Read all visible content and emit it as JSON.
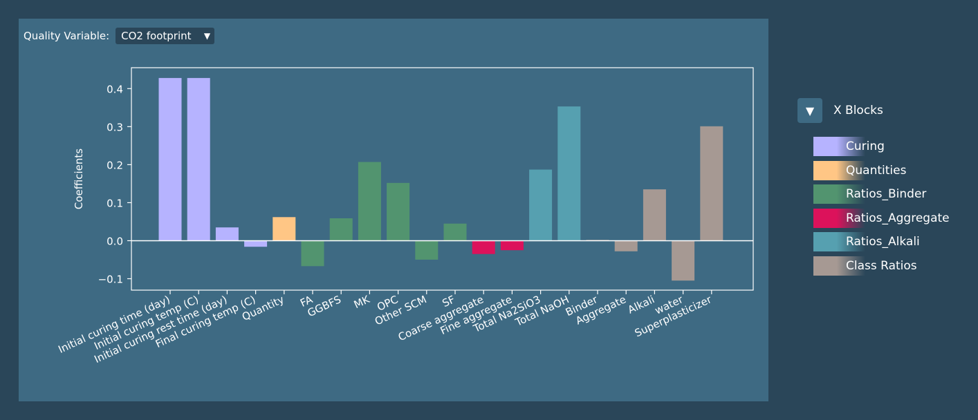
{
  "quality_variable": {
    "label": "Quality Variable:",
    "value": "CO2 footprint",
    "dropdown_icon": "triangle-down-icon"
  },
  "legend": {
    "title": "X Blocks",
    "toggle_icon": "triangle-down-icon",
    "items": [
      {
        "label": "Curing",
        "color": "#b6b3ff"
      },
      {
        "label": "Quantities",
        "color": "#ffc685"
      },
      {
        "label": "Ratios_Binder",
        "color": "#52946f"
      },
      {
        "label": "Ratios_Aggregate",
        "color": "#dc125b"
      },
      {
        "label": "Ratios_Alkali",
        "color": "#56a0b0"
      },
      {
        "label": "Class Ratios",
        "color": "#a69993"
      }
    ]
  },
  "chart_data": {
    "type": "bar",
    "title": "",
    "xlabel": "",
    "ylabel": "Coefficients",
    "ylim": [
      -0.13,
      0.455
    ],
    "yticks": [
      -0.1,
      0.0,
      0.1,
      0.2,
      0.3,
      0.4
    ],
    "ytick_labels": [
      "−0.1",
      "0.0",
      "0.1",
      "0.2",
      "0.3",
      "0.4"
    ],
    "grid": false,
    "legend_position": "right",
    "categories": [
      "Initial curing time (day)",
      "Initial curing temp (C)",
      "Initial curing rest time (day)",
      "Final curing temp (C)",
      "Quantity",
      "FA",
      "GGBFS",
      "MK",
      "OPC",
      "Other SCM",
      "SF",
      "Coarse aggregate",
      "Fine aggregate",
      "Total Na2SiO3",
      "Total NaOH",
      "Binder",
      "Aggregate",
      "Alkali",
      "water",
      "Superplasticizer"
    ],
    "values": [
      0.428,
      0.428,
      0.035,
      -0.016,
      0.062,
      -0.067,
      0.059,
      0.207,
      0.152,
      -0.05,
      0.045,
      -0.035,
      -0.025,
      0.187,
      0.353,
      0.002,
      -0.028,
      0.135,
      -0.105,
      0.301
    ],
    "groups": [
      "Curing",
      "Curing",
      "Curing",
      "Curing",
      "Quantities",
      "Ratios_Binder",
      "Ratios_Binder",
      "Ratios_Binder",
      "Ratios_Binder",
      "Ratios_Binder",
      "Ratios_Binder",
      "Ratios_Aggregate",
      "Ratios_Aggregate",
      "Ratios_Alkali",
      "Ratios_Alkali",
      "Class Ratios",
      "Class Ratios",
      "Class Ratios",
      "Class Ratios",
      "Class Ratios"
    ]
  }
}
